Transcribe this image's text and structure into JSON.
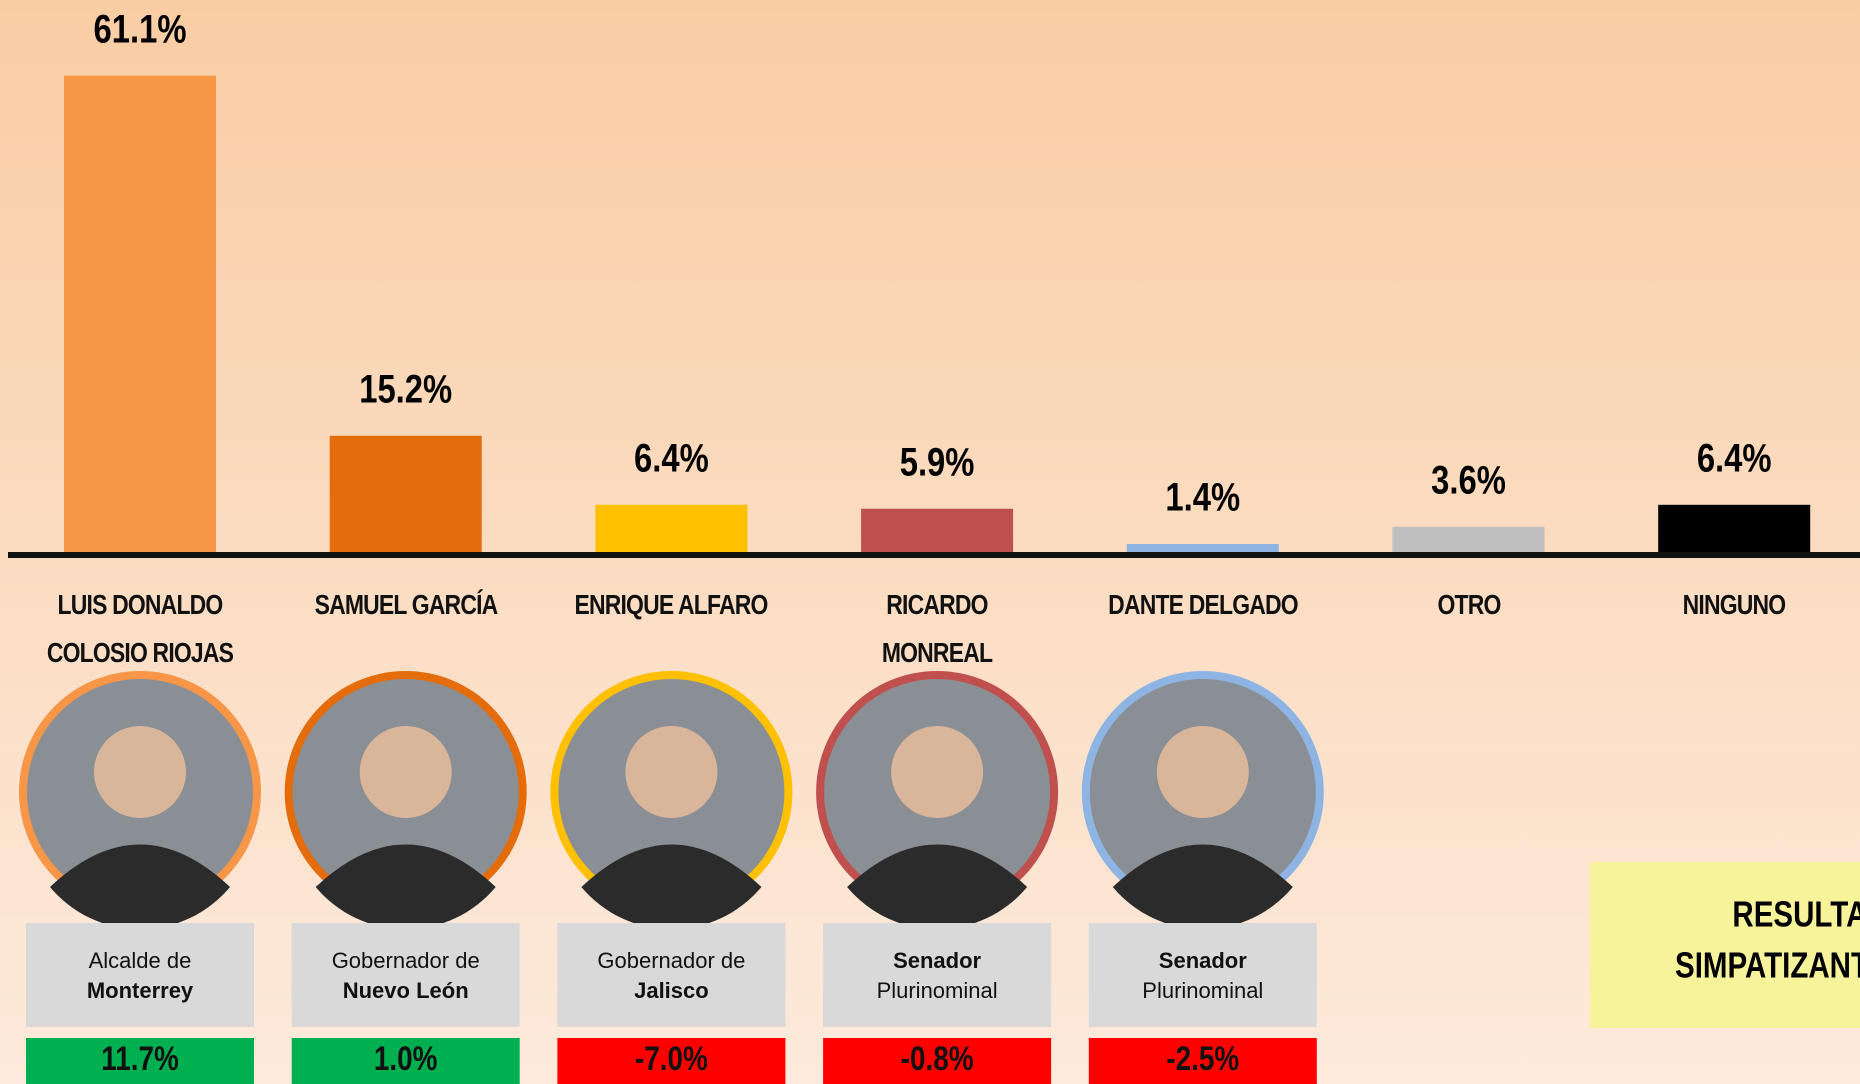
{
  "chart_data": {
    "type": "bar",
    "categories": [
      "LUIS DONALDO COLOSIO RIOJAS",
      "SAMUEL GARCÍA",
      "ENRIQUE ALFARO",
      "RICARDO MONREAL",
      "DANTE DELGADO",
      "OTRO",
      "NINGUNO"
    ],
    "values": [
      61.1,
      15.2,
      6.4,
      5.9,
      1.4,
      3.6,
      6.4
    ],
    "value_labels": [
      "61.1%",
      "15.2%",
      "6.4%",
      "5.9%",
      "1.4%",
      "3.6%",
      "6.4%"
    ],
    "colors": [
      "#f79646",
      "#e46c0a",
      "#ffc000",
      "#c0504d",
      "#8eb4e3",
      "#bfbfbf",
      "#000000"
    ],
    "ylim": [
      0,
      70
    ],
    "roles": [
      [
        {
          "text": "Alcalde de",
          "bold": false
        },
        {
          "text": "Monterrey",
          "bold": true
        }
      ],
      [
        {
          "text": "Gobernador de",
          "bold": false
        },
        {
          "text": "Nuevo León",
          "bold": true
        }
      ],
      [
        {
          "text": "Gobernador de",
          "bold": false
        },
        {
          "text": "Jalisco",
          "bold": true
        }
      ],
      [
        {
          "text": "Senador",
          "bold": true
        },
        {
          "text": "Plurinominal",
          "bold": false
        }
      ],
      [
        {
          "text": "Senador",
          "bold": true
        },
        {
          "text": "Plurinominal",
          "bold": false
        }
      ]
    ],
    "changes": {
      "values": [
        11.7,
        1.0,
        -7.0,
        -0.8,
        -2.5
      ],
      "value_labels": [
        "11.7%",
        "1.0%",
        "-7.0%",
        "-0.8%",
        "-2.5%"
      ]
    },
    "note": [
      "RESULTAD",
      "SIMPATIZANTE"
    ]
  }
}
